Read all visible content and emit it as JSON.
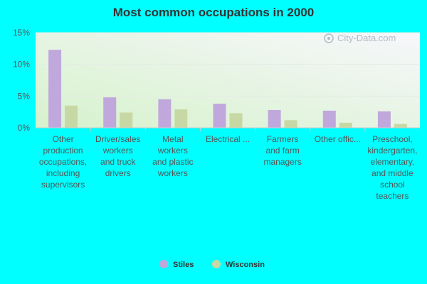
{
  "chart_data": {
    "type": "bar",
    "title": "Most common occupations in 2000",
    "xlabel": "",
    "ylabel": "",
    "ylim": [
      0,
      15
    ],
    "y_ticks": [
      "0%",
      "5%",
      "10%",
      "15%"
    ],
    "y_tick_values": [
      0,
      5,
      10,
      15
    ],
    "categories": [
      [
        "Other",
        "production",
        "occupations,",
        "including",
        "supervisors"
      ],
      [
        "Driver/sales",
        "workers",
        "and truck",
        "drivers"
      ],
      [
        "Metal",
        "workers",
        "and plastic",
        "workers"
      ],
      [
        "Electrical ..."
      ],
      [
        "Farmers",
        "and farm",
        "managers"
      ],
      [
        "Other offic..."
      ],
      [
        "Preschool,",
        "kindergarten,",
        "elementary,",
        "and middle",
        "school",
        "teachers"
      ]
    ],
    "series": [
      {
        "name": "Stiles",
        "color": "#c0a8dc",
        "values": [
          12.3,
          4.8,
          4.5,
          3.8,
          2.8,
          2.7,
          2.6
        ]
      },
      {
        "name": "Wisconsin",
        "color": "#c8d8a4",
        "values": [
          3.5,
          2.4,
          2.9,
          2.3,
          1.2,
          0.8,
          0.6
        ]
      }
    ],
    "grid": true,
    "legend_position": "bottom-center",
    "watermark": "City-Data.com"
  }
}
